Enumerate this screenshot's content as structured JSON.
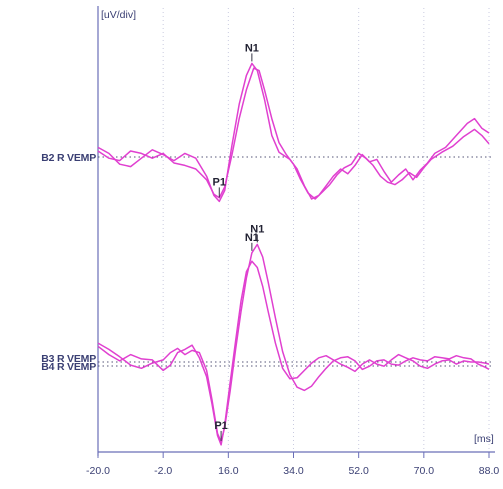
{
  "chart_data": {
    "type": "line",
    "y_unit_label": "[uV/div]",
    "x_unit_label": "[ms]",
    "xlim": [
      -20,
      88
    ],
    "x_ticks": [
      "-20.0",
      "-2.0",
      "16.0",
      "34.0",
      "52.0",
      "70.0",
      "88.0"
    ],
    "grid": "vertical dotted",
    "line_color": "#e040d0",
    "axis_color": "#6a6fb8",
    "panels": [
      {
        "labels": [
          "B2 R VEMP"
        ],
        "series": [
          {
            "points": [
              [
                -20,
                0.4
              ],
              [
                -17,
                0.15
              ],
              [
                -14,
                -0.3
              ],
              [
                -11,
                -0.4
              ],
              [
                -8,
                -0.05
              ],
              [
                -5,
                0.3
              ],
              [
                -2,
                0.1
              ],
              [
                1,
                -0.15
              ],
              [
                4,
                0.15
              ],
              [
                7,
                -0.05
              ],
              [
                10,
                -0.8
              ],
              [
                12,
                -1.6
              ],
              [
                13.5,
                -1.85
              ],
              [
                15,
                -1.4
              ],
              [
                17,
                0.5
              ],
              [
                19,
                2.2
              ],
              [
                21,
                3.4
              ],
              [
                22.5,
                3.9
              ],
              [
                24,
                3.6
              ],
              [
                26,
                2.4
              ],
              [
                28,
                0.9
              ],
              [
                30,
                0.2
              ],
              [
                33,
                -0.1
              ],
              [
                35,
                -0.5
              ],
              [
                37,
                -1.2
              ],
              [
                39,
                -1.75
              ],
              [
                41,
                -1.6
              ],
              [
                43,
                -1.2
              ],
              [
                45,
                -0.8
              ],
              [
                47,
                -0.5
              ],
              [
                49,
                -0.7
              ],
              [
                51,
                -0.35
              ],
              [
                53,
                0.1
              ],
              [
                55,
                -0.2
              ],
              [
                57,
                -0.1
              ],
              [
                59,
                -0.6
              ],
              [
                61,
                -1.05
              ],
              [
                63,
                -0.75
              ],
              [
                65,
                -0.5
              ],
              [
                67,
                -0.95
              ],
              [
                69,
                -0.55
              ],
              [
                71,
                -0.25
              ],
              [
                73,
                0.15
              ],
              [
                76,
                0.4
              ],
              [
                79,
                0.9
              ],
              [
                82,
                1.4
              ],
              [
                84,
                1.6
              ],
              [
                86,
                1.2
              ],
              [
                88,
                1.0
              ]
            ]
          },
          {
            "points": [
              [
                -20,
                0.25
              ],
              [
                -17,
                -0.05
              ],
              [
                -14,
                -0.15
              ],
              [
                -11,
                0.25
              ],
              [
                -8,
                0.15
              ],
              [
                -5,
                -0.05
              ],
              [
                -2,
                0.15
              ],
              [
                1,
                -0.25
              ],
              [
                4,
                -0.35
              ],
              [
                7,
                -0.5
              ],
              [
                10,
                -0.95
              ],
              [
                12,
                -1.55
              ],
              [
                13.5,
                -1.7
              ],
              [
                15,
                -1.25
              ],
              [
                17,
                0.1
              ],
              [
                19,
                1.6
              ],
              [
                21,
                2.8
              ],
              [
                23,
                3.7
              ],
              [
                24.5,
                3.6
              ],
              [
                26,
                2.8
              ],
              [
                28,
                1.6
              ],
              [
                30,
                0.6
              ],
              [
                32,
                0.1
              ],
              [
                34,
                -0.3
              ],
              [
                36,
                -0.95
              ],
              [
                38,
                -1.5
              ],
              [
                40,
                -1.75
              ],
              [
                42,
                -1.45
              ],
              [
                44,
                -1.15
              ],
              [
                46,
                -0.75
              ],
              [
                48,
                -0.45
              ],
              [
                50,
                -0.3
              ],
              [
                52,
                0.15
              ],
              [
                54,
                -0.05
              ],
              [
                56,
                -0.35
              ],
              [
                58,
                -0.8
              ],
              [
                60,
                -1.05
              ],
              [
                62,
                -1.15
              ],
              [
                64,
                -0.95
              ],
              [
                66,
                -0.65
              ],
              [
                68,
                -0.85
              ],
              [
                70,
                -0.45
              ],
              [
                72,
                -0.1
              ],
              [
                75,
                0.2
              ],
              [
                78,
                0.45
              ],
              [
                81,
                0.85
              ],
              [
                84,
                1.15
              ],
              [
                86,
                0.9
              ],
              [
                88,
                0.55
              ]
            ]
          }
        ],
        "peaks": [
          {
            "label": "P1",
            "x": 13.5,
            "y": -1.85
          },
          {
            "label": "N1",
            "x": 22.5,
            "y": 3.9
          }
        ]
      },
      {
        "labels": [
          "B3 R VEMP",
          "B4 R VEMP"
        ],
        "series": [
          {
            "points": [
              [
                -20,
                0.9
              ],
              [
                -17,
                0.6
              ],
              [
                -14,
                0.25
              ],
              [
                -11,
                -0.15
              ],
              [
                -8,
                -0.3
              ],
              [
                -5,
                -0.05
              ],
              [
                -2,
                0.1
              ],
              [
                0,
                0.45
              ],
              [
                2,
                0.65
              ],
              [
                4,
                0.35
              ],
              [
                6,
                0.55
              ],
              [
                8,
                0.45
              ],
              [
                10,
                -0.4
              ],
              [
                11.5,
                -1.8
              ],
              [
                13,
                -3.4
              ],
              [
                14,
                -3.8
              ],
              [
                15,
                -3.1
              ],
              [
                16.5,
                -1.4
              ],
              [
                18,
                0.6
              ],
              [
                19.5,
                2.4
              ],
              [
                21,
                4.0
              ],
              [
                22.5,
                5.2
              ],
              [
                24,
                5.6
              ],
              [
                25.5,
                5.0
              ],
              [
                27,
                3.8
              ],
              [
                29,
                2.1
              ],
              [
                31,
                0.5
              ],
              [
                33,
                -0.6
              ],
              [
                35,
                -1.2
              ],
              [
                37,
                -1.35
              ],
              [
                39,
                -1.15
              ],
              [
                41,
                -0.7
              ],
              [
                43,
                -0.3
              ],
              [
                45,
                0.05
              ],
              [
                47,
                0.2
              ],
              [
                49,
                0.25
              ],
              [
                51,
                0.05
              ],
              [
                53,
                -0.35
              ],
              [
                55,
                -0.2
              ],
              [
                57,
                0.05
              ],
              [
                59,
                0.1
              ],
              [
                61,
                -0.1
              ],
              [
                63,
                -0.15
              ],
              [
                65,
                0.05
              ],
              [
                67,
                0.2
              ],
              [
                69,
                0.1
              ],
              [
                71,
                0.05
              ],
              [
                73,
                0.25
              ],
              [
                75,
                0.2
              ],
              [
                77,
                0.15
              ],
              [
                79,
                0.3
              ],
              [
                81,
                0.2
              ],
              [
                83,
                0.15
              ],
              [
                85,
                -0.1
              ],
              [
                87,
                -0.25
              ],
              [
                88,
                -0.35
              ]
            ]
          },
          {
            "points": [
              [
                -20,
                0.75
              ],
              [
                -17,
                0.35
              ],
              [
                -14,
                0.05
              ],
              [
                -11,
                0.35
              ],
              [
                -8,
                0.15
              ],
              [
                -5,
                0.1
              ],
              [
                -2,
                -0.4
              ],
              [
                0,
                -0.15
              ],
              [
                2,
                0.45
              ],
              [
                4,
                0.6
              ],
              [
                6,
                0.8
              ],
              [
                8,
                0.2
              ],
              [
                10,
                -0.7
              ],
              [
                11.5,
                -2.0
              ],
              [
                13,
                -3.5
              ],
              [
                14,
                -3.95
              ],
              [
                15,
                -3.0
              ],
              [
                16.5,
                -1.0
              ],
              [
                18,
                1.0
              ],
              [
                19.5,
                2.9
              ],
              [
                21,
                4.3
              ],
              [
                22.5,
                4.8
              ],
              [
                24,
                4.5
              ],
              [
                25.5,
                3.6
              ],
              [
                27,
                2.4
              ],
              [
                29,
                0.9
              ],
              [
                31,
                -0.3
              ],
              [
                33,
                -0.8
              ],
              [
                35,
                -0.75
              ],
              [
                37,
                -0.4
              ],
              [
                39,
                -0.05
              ],
              [
                41,
                0.2
              ],
              [
                43,
                0.3
              ],
              [
                45,
                0.1
              ],
              [
                47,
                -0.1
              ],
              [
                49,
                -0.25
              ],
              [
                51,
                -0.45
              ],
              [
                53,
                -0.1
              ],
              [
                55,
                0.1
              ],
              [
                57,
                -0.1
              ],
              [
                59,
                -0.2
              ],
              [
                61,
                0.1
              ],
              [
                63,
                0.35
              ],
              [
                65,
                0.2
              ],
              [
                67,
                0.05
              ],
              [
                69,
                -0.2
              ],
              [
                71,
                -0.3
              ],
              [
                73,
                -0.1
              ],
              [
                75,
                0.05
              ],
              [
                77,
                0.1
              ],
              [
                79,
                -0.1
              ],
              [
                81,
                0.05
              ],
              [
                83,
                0.0
              ],
              [
                85,
                0.0
              ],
              [
                87,
                -0.05
              ],
              [
                88,
                -0.1
              ]
            ]
          }
        ],
        "peaks": [
          {
            "label": "P1",
            "x": 14,
            "y": -3.95
          },
          {
            "label": "N1",
            "x": 22.5,
            "y": 5.2
          },
          {
            "label": "N1",
            "x": 24,
            "y": 5.6
          }
        ]
      }
    ]
  }
}
